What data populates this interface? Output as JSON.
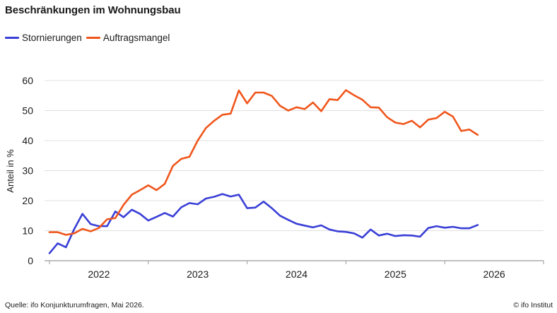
{
  "header": {
    "title": "Beschränkungen im Wohnungsbau"
  },
  "footer": {
    "source": "Quelle: ifo Konjunkturumfragen,  Mai 2026.",
    "credit": "© ifo Institut"
  },
  "chart_data": {
    "type": "line",
    "title": "Beschränkungen im Wohnungsbau",
    "xlabel": "",
    "ylabel": "Anteil in %",
    "xlim": [
      2021.45,
      2026.5
    ],
    "ylim": [
      0,
      60
    ],
    "yticks": [
      0,
      10,
      20,
      30,
      40,
      50,
      60
    ],
    "xticks": [
      {
        "label": "2022",
        "x": 2022.0
      },
      {
        "label": "2023",
        "x": 2023.0
      },
      {
        "label": "2024",
        "x": 2024.0
      },
      {
        "label": "2025",
        "x": 2025.0
      },
      {
        "label": "2026",
        "x": 2026.0
      }
    ],
    "grid": "horizontal",
    "legend_position": "top-left",
    "x_start": 2021.5,
    "x_step": 0.0833333,
    "series": [
      {
        "name": "Stornierungen",
        "color": "#3a3fd6",
        "values": [
          2.5,
          5.8,
          4.5,
          10.5,
          15.6,
          12.2,
          11.5,
          11.5,
          16.4,
          14.5,
          17.0,
          15.6,
          13.4,
          14.6,
          15.9,
          14.7,
          17.8,
          19.2,
          18.8,
          20.7,
          21.3,
          22.2,
          21.4,
          22.0,
          17.5,
          17.7,
          19.7,
          17.5,
          15.0,
          13.6,
          12.3,
          11.7,
          11.1,
          11.8,
          10.4,
          9.8,
          9.6,
          9.1,
          7.7,
          10.4,
          8.4,
          9.0,
          8.2,
          8.5,
          8.4,
          8.0,
          10.9,
          11.5,
          11.0,
          11.3,
          10.8,
          10.8,
          11.9
        ]
      },
      {
        "name": "Auftragsmangel",
        "color": "#f0561c",
        "values": [
          9.5,
          9.5,
          8.6,
          9.1,
          10.6,
          9.8,
          10.9,
          13.8,
          14.2,
          18.6,
          22.0,
          23.5,
          25.1,
          23.5,
          25.6,
          31.6,
          33.9,
          34.6,
          40.0,
          44.2,
          46.6,
          48.6,
          49.0,
          56.7,
          52.4,
          56.0,
          56.0,
          54.9,
          51.6,
          50.0,
          51.1,
          50.5,
          52.7,
          49.8,
          53.8,
          53.5,
          56.8,
          55.1,
          53.6,
          51.1,
          51.0,
          47.8,
          46.0,
          45.5,
          46.6,
          44.4,
          47.0,
          47.5,
          49.6,
          48.0,
          43.2,
          43.7,
          41.9
        ]
      }
    ]
  }
}
